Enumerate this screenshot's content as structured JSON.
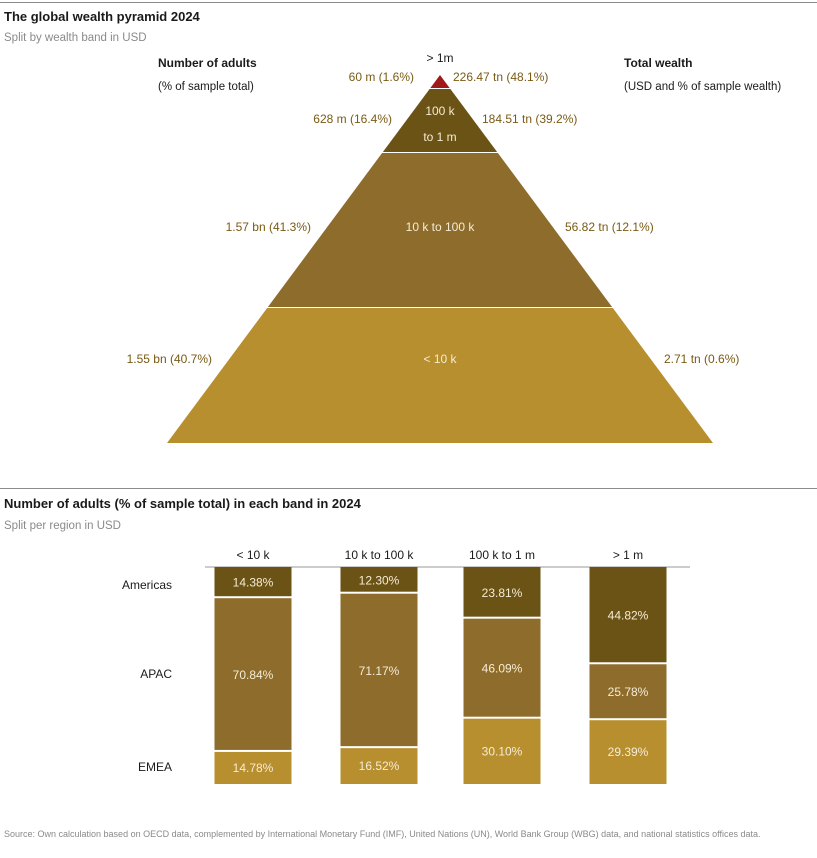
{
  "top": {
    "title": "The global wealth pyramid 2024",
    "subtitle": "Split by wealth band in USD",
    "left_header": "Number of adults",
    "left_sub": "(% of sample total)",
    "right_header": "Total wealth",
    "right_sub": "(USD and % of sample wealth)"
  },
  "bottom": {
    "title": "Number of adults (% of sample total) in each band in 2024",
    "subtitle": "Split per region in USD"
  },
  "source": "Source: Own calculation based on OECD data, complemented by International Monetary Fund (IMF), United Nations (UN), World Bank Group (WBG) data, and national statistics offices data.",
  "colors": {
    "top_tier": "#a01a1a",
    "dark": "#6b5215",
    "mid": "#8e6c2c",
    "light": "#b88f2f",
    "label_text": "#7a5a14",
    "inner_text": "#f5ecd6"
  },
  "chart_data": [
    {
      "type": "pyramid",
      "title": "The global wealth pyramid 2024",
      "bands": [
        {
          "band": "> 1m",
          "adults_label": "60 m (1.6%)",
          "adults_pct": 1.6,
          "wealth_label": "226.47 tn (48.1%)",
          "wealth_pct": 48.1
        },
        {
          "band": "100 k to 1 m",
          "band_lines": [
            "100 k",
            "to 1 m"
          ],
          "adults_label": "628 m (16.4%)",
          "adults_pct": 16.4,
          "wealth_label": "184.51 tn (39.2%)",
          "wealth_pct": 39.2
        },
        {
          "band": "10 k to 100 k",
          "adults_label": "1.57 bn (41.3%)",
          "adults_pct": 41.3,
          "wealth_label": "56.82 tn (12.1%)",
          "wealth_pct": 12.1
        },
        {
          "band": "< 10 k",
          "adults_label": "1.55 bn (40.7%)",
          "adults_pct": 40.7,
          "wealth_label": "2.71 tn (0.6%)",
          "wealth_pct": 0.6
        }
      ]
    },
    {
      "type": "bar",
      "stacked": true,
      "title": "Number of adults (% of sample total) in each band in 2024",
      "categories": [
        "< 10 k",
        "10 k to 100 k",
        "100 k to 1 m",
        "> 1 m"
      ],
      "row_labels": [
        "Americas",
        "APAC",
        "EMEA"
      ],
      "series": [
        {
          "name": "Americas",
          "values": [
            14.38,
            12.3,
            23.81,
            44.82
          ],
          "labels": [
            "14.38%",
            "12.30%",
            "23.81%",
            "44.82%"
          ]
        },
        {
          "name": "APAC",
          "values": [
            70.84,
            71.17,
            46.09,
            25.78
          ],
          "labels": [
            "70.84%",
            "71.17%",
            "46.09%",
            "25.78%"
          ]
        },
        {
          "name": "EMEA",
          "values": [
            14.78,
            16.52,
            30.1,
            29.39
          ],
          "labels": [
            "14.78%",
            "16.52%",
            "30.10%",
            "29.39%"
          ]
        }
      ]
    }
  ]
}
